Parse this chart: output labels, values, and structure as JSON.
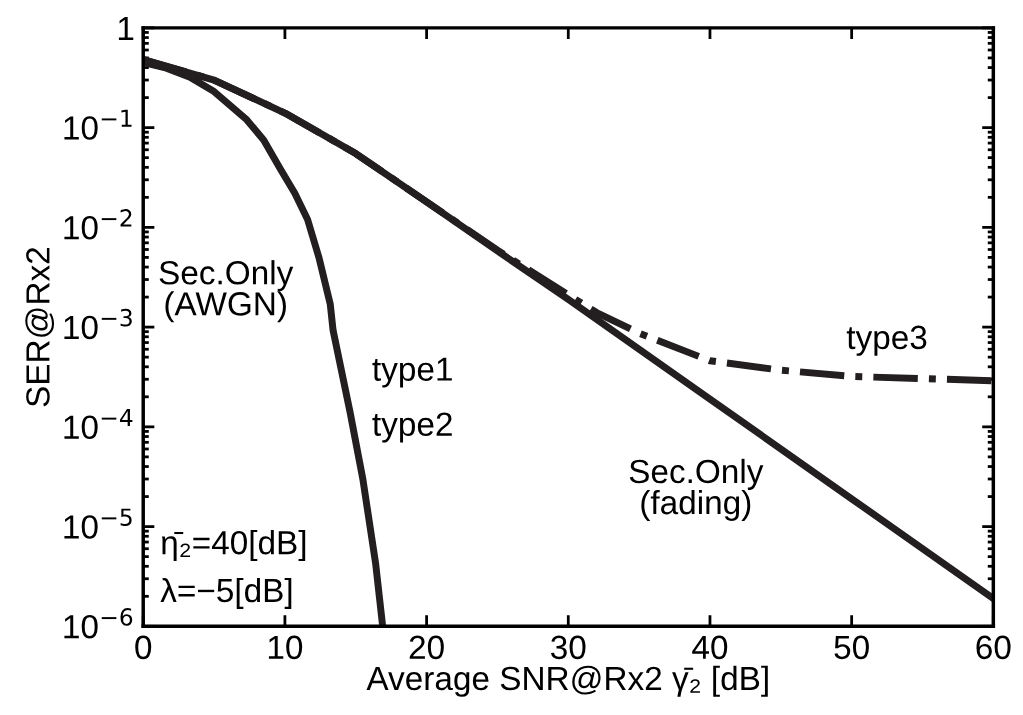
{
  "chart_data": {
    "type": "line",
    "xlabel": "Average SNR@Rx2 γ̄₂ [dB]",
    "ylabel": "SER@Rx2",
    "log": "y",
    "xlim": [
      0,
      60
    ],
    "ylim": [
      1e-06,
      1
    ],
    "xticks": [
      0,
      10,
      20,
      30,
      40,
      50,
      60
    ],
    "yticks": [
      {
        "value": 1e-06,
        "label": "10$^{−6}$"
      },
      {
        "value": 1e-05,
        "label": "10$^{−5}$"
      },
      {
        "value": 0.0001,
        "label": "10$^{−4}$"
      },
      {
        "value": 0.001,
        "label": "10$^{−3}$"
      },
      {
        "value": 0.01,
        "label": "10$^{−2}$"
      },
      {
        "value": 0.1,
        "label": "10$^{−1}$"
      },
      {
        "value": 1,
        "label": "1"
      }
    ],
    "grid": false,
    "marker": "none",
    "series": [
      {
        "color": "#231f20",
        "line_style": "solid",
        "x": [
          0,
          1.5,
          3.3,
          5,
          7.3,
          8.5,
          9.7,
          10.7,
          11.6,
          12.4,
          13.2,
          13.4,
          14.6,
          15.5,
          16.4,
          16.9
        ],
        "values": [
          0.45,
          0.4,
          0.32,
          0.23,
          0.12,
          0.075,
          0.038,
          0.022,
          0.012,
          0.005,
          0.0017,
          0.00093,
          0.00014,
          3e-05,
          4.3e-06,
          1e-06
        ]
      },
      {
        "color": "#231f20",
        "line_style": "solid",
        "x": [
          0,
          5,
          10,
          15,
          20,
          25,
          30,
          40,
          50,
          60
        ],
        "values": [
          0.48,
          0.3,
          0.14,
          0.055,
          0.018,
          0.0058,
          0.0019,
          0.00019,
          1.9e-05,
          1.9e-06
        ]
      },
      {
        "color": "#231f20",
        "line_style": "dashdot",
        "x": [
          0,
          5,
          10,
          15,
          20,
          25,
          30,
          32,
          35,
          40,
          45,
          50,
          60
        ],
        "values": [
          0.48,
          0.3,
          0.14,
          0.055,
          0.018,
          0.0059,
          0.0021,
          0.0014,
          0.00087,
          0.00046,
          0.00037,
          0.00032,
          0.00029
        ]
      }
    ],
    "annotations": [
      "Sec.Only\n(AWGN)",
      "type1",
      "type2",
      "type3",
      "Sec.Only\n(fading)",
      "η̄₂=40[dB]",
      "λ=−5[dB]"
    ]
  }
}
